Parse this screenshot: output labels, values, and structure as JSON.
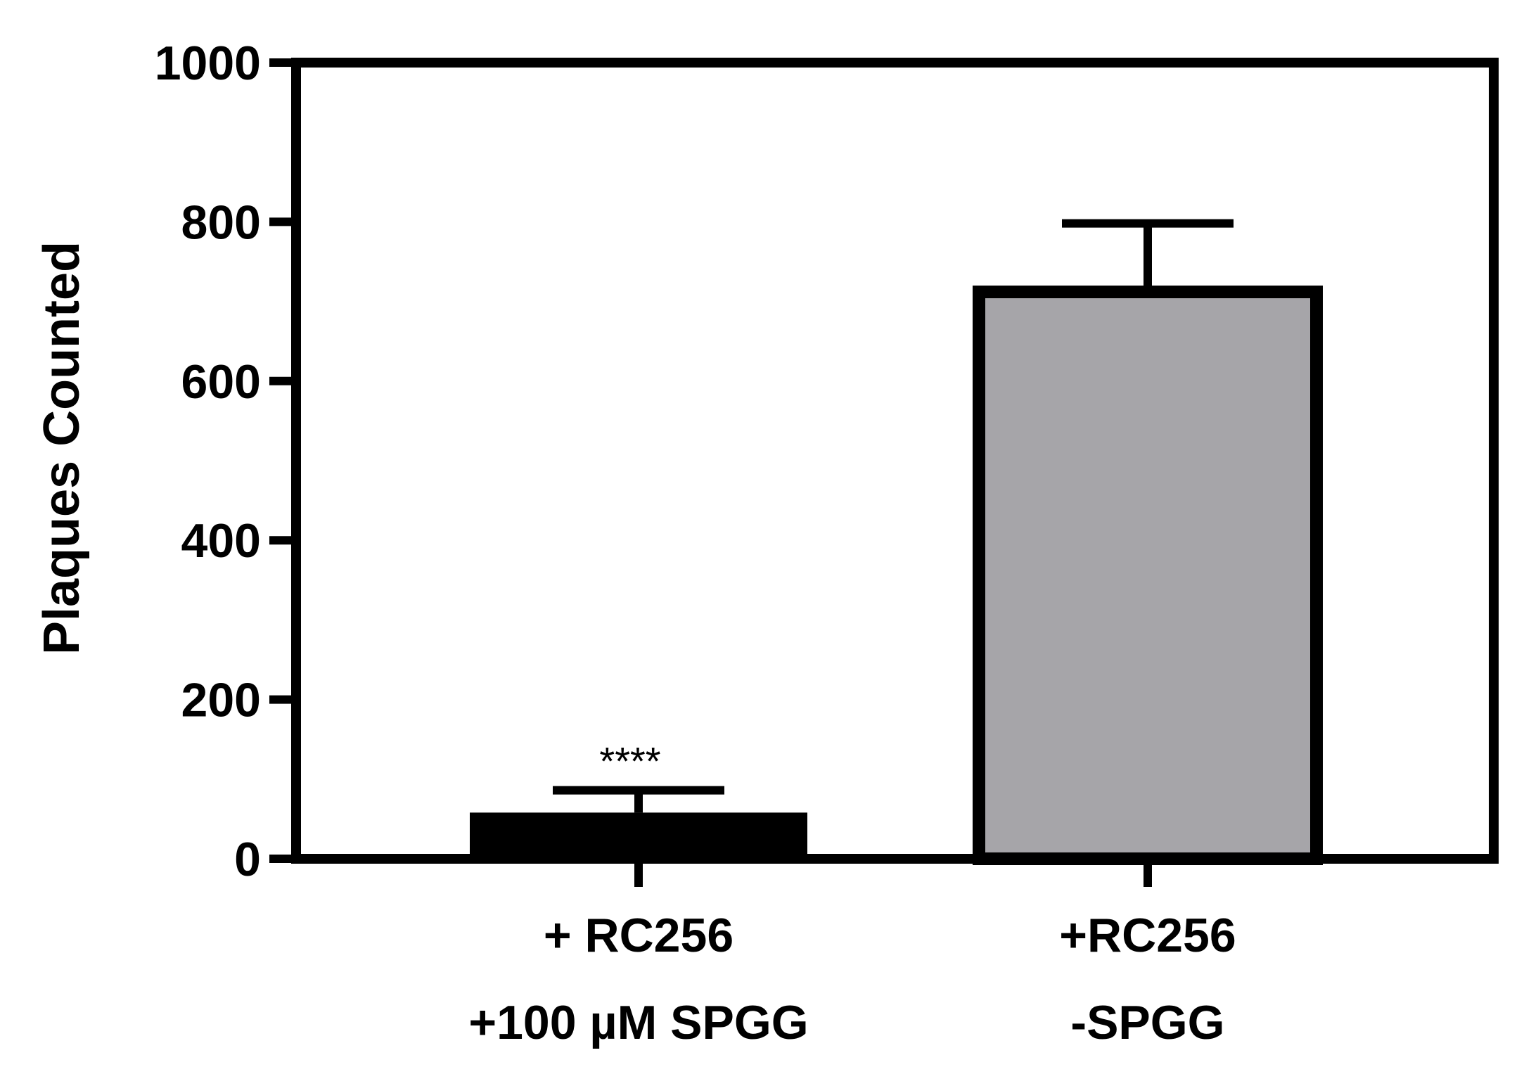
{
  "chart_data": {
    "type": "bar",
    "categories": [
      {
        "line1": "+ RC256",
        "line2": "+100 µM SPGG"
      },
      {
        "line1": "+RC256",
        "line2": "-SPGG"
      }
    ],
    "values": [
      58,
      712
    ],
    "errors": [
      28,
      86
    ],
    "bar_colors": [
      "#000000",
      "#a6a5a9"
    ],
    "significance": [
      "****",
      ""
    ],
    "ylabel": "Plaques Counted",
    "ylim": [
      0,
      1000
    ],
    "yticks": [
      0,
      200,
      400,
      600,
      800,
      1000
    ],
    "grid": false
  }
}
